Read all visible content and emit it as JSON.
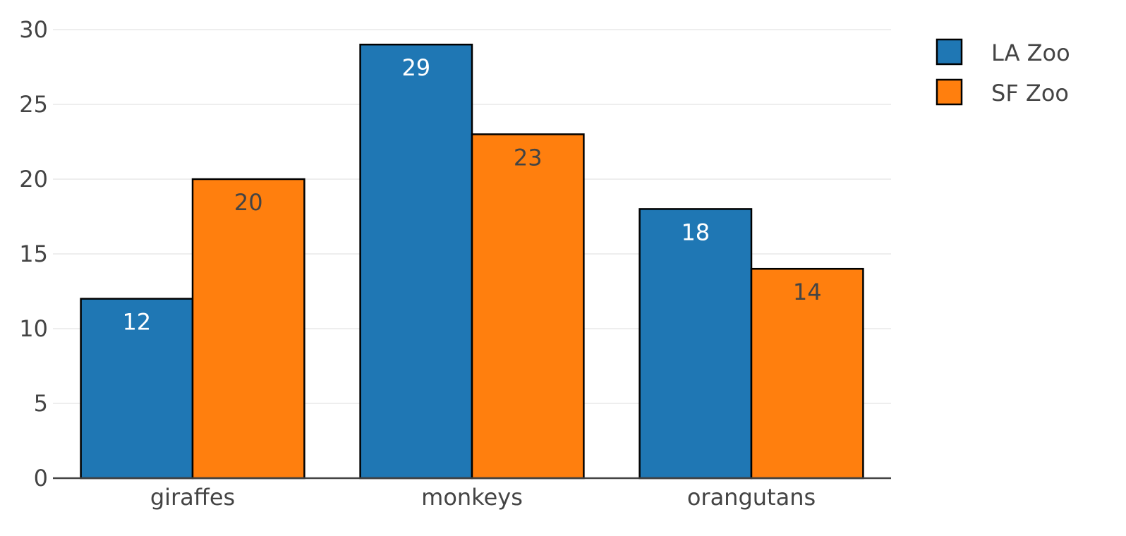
{
  "chart_data": {
    "type": "bar",
    "categories": [
      "giraffes",
      "monkeys",
      "orangutans"
    ],
    "series": [
      {
        "name": "LA Zoo",
        "values": [
          12,
          29,
          18
        ],
        "color": "#1f77b4",
        "label_color": "#ffffff"
      },
      {
        "name": "SF Zoo",
        "values": [
          20,
          23,
          14
        ],
        "color": "#ff7f0e",
        "label_color": "#444444"
      }
    ],
    "ylim": [
      0,
      30
    ],
    "yticks": [
      0,
      5,
      10,
      15,
      20,
      25,
      30
    ],
    "grid": true,
    "legend_position": "top-right",
    "bar_outline_color": "#000000",
    "grid_color": "#eeeeee",
    "axis_color": "#444444"
  }
}
